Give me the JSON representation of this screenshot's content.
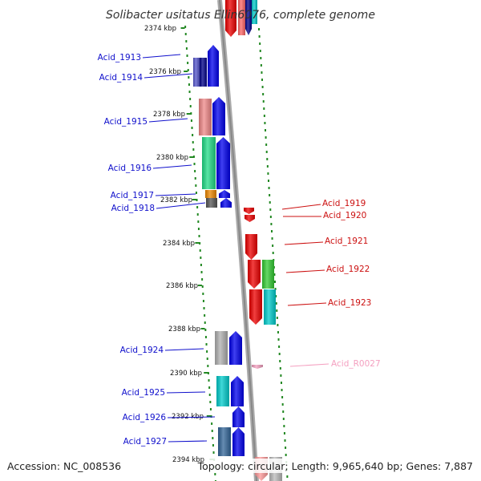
{
  "title": "Solibacter usitatus Ellin6076, complete genome",
  "footer": {
    "accession": "Accession: NC_008536",
    "summary": "Topology: circular; Length: 9,965,640 bp; Genes: 7,887"
  },
  "colors": {
    "left_label": "#1010cc",
    "right_label": "#cc1010",
    "rna_label": "#f4a0c0",
    "ruler": "#228822",
    "backbone": "#9a9a9a",
    "cds_left": "#0000ee",
    "cds_right": "#ee0000"
  },
  "ticks": [
    {
      "label": "2374 kbp"
    },
    {
      "label": "2376 kbp"
    },
    {
      "label": "2378 kbp"
    },
    {
      "label": "2380 kbp"
    },
    {
      "label": "2382 kbp"
    },
    {
      "label": "2384 kbp"
    },
    {
      "label": "2386 kbp"
    },
    {
      "label": "2388 kbp"
    },
    {
      "label": "2390 kbp"
    },
    {
      "label": "2392 kbp"
    },
    {
      "label": "2394 kbp"
    }
  ],
  "left_genes": [
    {
      "name": "Acid_1913"
    },
    {
      "name": "Acid_1914"
    },
    {
      "name": "Acid_1915"
    },
    {
      "name": "Acid_1916"
    },
    {
      "name": "Acid_1917"
    },
    {
      "name": "Acid_1918"
    },
    {
      "name": "Acid_1924"
    },
    {
      "name": "Acid_1925"
    },
    {
      "name": "Acid_1926"
    },
    {
      "name": "Acid_1927"
    }
  ],
  "right_genes": [
    {
      "name": "Acid_1919"
    },
    {
      "name": "Acid_1920"
    },
    {
      "name": "Acid_1921"
    },
    {
      "name": "Acid_1922"
    },
    {
      "name": "Acid_1923"
    },
    {
      "name": "Acid_R0027",
      "rna": true
    }
  ]
}
